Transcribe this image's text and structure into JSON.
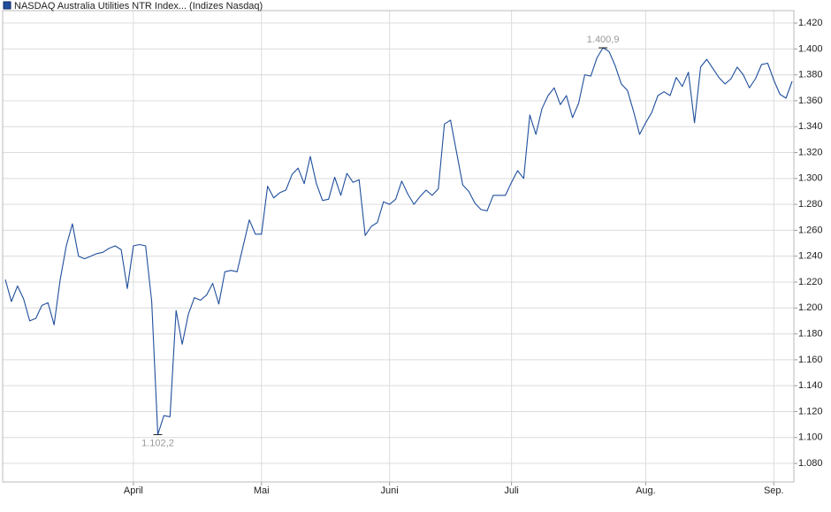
{
  "chart_data": {
    "type": "line",
    "series": [
      {
        "name": "NASDAQ Australia Utilities NTR Index... (Indizes Nasdaq)",
        "color": "#1f4e9c",
        "values": [
          1222,
          1205,
          1217,
          1207,
          1190,
          1192,
          1202,
          1204,
          1187,
          1222,
          1248,
          1265,
          1240,
          1238,
          1240,
          1242,
          1243,
          1246,
          1248,
          1245,
          1215,
          1248,
          1249,
          1248,
          1205,
          1102.2,
          1117,
          1116,
          1198,
          1172,
          1195,
          1208,
          1206,
          1210,
          1219,
          1203,
          1228,
          1229,
          1228,
          1248,
          1268,
          1257,
          1257,
          1294,
          1285,
          1289,
          1291,
          1303,
          1308,
          1296,
          1317,
          1296,
          1283,
          1284,
          1301,
          1287,
          1304,
          1297,
          1299,
          1256,
          1263,
          1266,
          1282,
          1280,
          1284,
          1298,
          1288,
          1280,
          1286,
          1291,
          1287,
          1292,
          1342,
          1345,
          1320,
          1295,
          1290,
          1281,
          1276,
          1275,
          1287,
          1287,
          1287,
          1297,
          1306,
          1300,
          1349,
          1334,
          1354,
          1364,
          1370,
          1357,
          1364,
          1347,
          1358,
          1380,
          1379,
          1393,
          1400.9,
          1398,
          1387,
          1373,
          1368,
          1352,
          1334,
          1343,
          1351,
          1364,
          1367,
          1364,
          1378,
          1371,
          1382,
          1343,
          1386,
          1392,
          1385,
          1378,
          1373,
          1377,
          1386,
          1380,
          1370,
          1377,
          1388,
          1389,
          1376,
          1365,
          1362,
          1375
        ],
        "value_labels": [
          null,
          null,
          null,
          null,
          null,
          null,
          null,
          null,
          null,
          null,
          null,
          null,
          null,
          null,
          null,
          null,
          null,
          null,
          null,
          null,
          null,
          null,
          null,
          null,
          null,
          "1.102,2",
          null,
          null,
          null,
          null,
          null,
          null,
          null,
          null,
          null,
          null,
          null,
          null,
          null,
          null,
          null,
          null,
          null,
          null,
          null,
          null,
          null,
          null,
          null,
          null,
          null,
          null,
          null,
          null,
          null,
          null,
          null,
          null,
          null,
          null,
          null,
          null,
          null,
          null,
          null,
          null,
          null,
          null,
          null,
          null,
          null,
          null,
          null,
          null,
          null,
          null,
          null,
          null,
          null,
          null,
          null,
          null,
          null,
          null,
          null,
          null,
          null,
          null,
          null,
          null,
          null,
          null,
          null,
          null,
          null,
          null,
          null,
          null,
          "1.400,9",
          null,
          null,
          null,
          null,
          null,
          null,
          null,
          null,
          null,
          null,
          null,
          null,
          null,
          null,
          null,
          null,
          null,
          null,
          null,
          null,
          null,
          null,
          null,
          null,
          null,
          null,
          null,
          null,
          null,
          null,
          null
        ]
      }
    ],
    "categories": [
      null,
      null,
      null,
      null,
      null,
      null,
      null,
      null,
      null,
      null,
      null,
      null,
      null,
      null,
      null,
      null,
      null,
      null,
      null,
      null,
      null,
      "April",
      null,
      null,
      null,
      null,
      null,
      null,
      null,
      null,
      null,
      null,
      null,
      null,
      null,
      null,
      null,
      null,
      null,
      null,
      null,
      null,
      "Mai",
      null,
      null,
      null,
      null,
      null,
      null,
      null,
      null,
      null,
      null,
      null,
      null,
      null,
      null,
      null,
      null,
      null,
      null,
      null,
      null,
      "Juni",
      null,
      null,
      null,
      null,
      null,
      null,
      null,
      null,
      null,
      null,
      null,
      null,
      null,
      null,
      null,
      null,
      null,
      null,
      null,
      "Juli",
      null,
      null,
      null,
      null,
      null,
      null,
      null,
      null,
      null,
      null,
      null,
      null,
      null,
      null,
      null,
      null,
      null,
      null,
      null,
      null,
      null,
      "Aug.",
      null,
      null,
      null,
      null,
      null,
      null,
      null,
      null,
      null,
      null,
      null,
      null,
      null,
      null,
      null,
      null,
      null,
      null,
      null,
      null,
      "Sep.",
      null,
      null,
      null
    ],
    "ylim": [
      1065.7,
      1429.6
    ],
    "yticks": [
      {
        "value": 1080,
        "label": "1.080"
      },
      {
        "value": 1100,
        "label": "1.100"
      },
      {
        "value": 1120,
        "label": "1.120"
      },
      {
        "value": 1140,
        "label": "1.140"
      },
      {
        "value": 1160,
        "label": "1.160"
      },
      {
        "value": 1180,
        "label": "1.180"
      },
      {
        "value": 1200,
        "label": "1.200"
      },
      {
        "value": 1220,
        "label": "1.220"
      },
      {
        "value": 1240,
        "label": "1.240"
      },
      {
        "value": 1260,
        "label": "1.260"
      },
      {
        "value": 1280,
        "label": "1.280"
      },
      {
        "value": 1300,
        "label": "1.300"
      },
      {
        "value": 1320,
        "label": "1.320"
      },
      {
        "value": 1340,
        "label": "1.340"
      },
      {
        "value": 1360,
        "label": "1.360"
      },
      {
        "value": 1380,
        "label": "1.380"
      },
      {
        "value": 1400,
        "label": "1.400"
      },
      {
        "value": 1420,
        "label": "1.420"
      }
    ],
    "grid": true,
    "legend": "top-left"
  }
}
